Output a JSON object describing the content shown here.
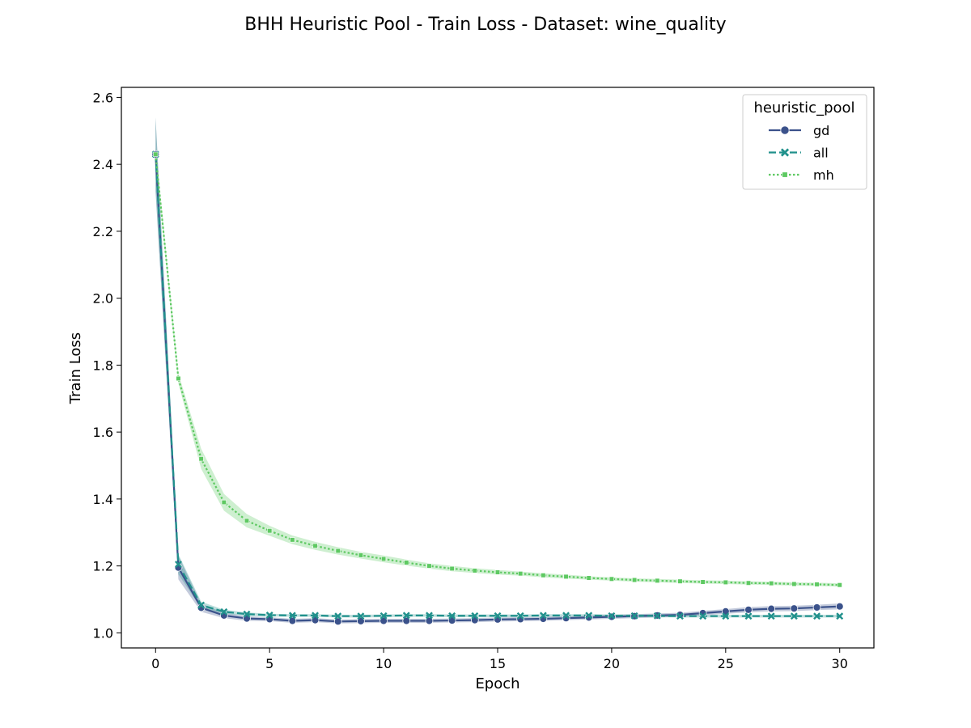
{
  "chart_data": {
    "type": "line",
    "title": "BHH Heuristic Pool - Train Loss - Dataset: wine_quality",
    "xlabel": "Epoch",
    "ylabel": "Train Loss",
    "xlim": [
      -1.5,
      31.5
    ],
    "ylim": [
      0.955,
      2.63
    ],
    "xticks": [
      0,
      5,
      10,
      15,
      20,
      25,
      30
    ],
    "yticks": [
      1.0,
      1.2,
      1.4,
      1.6,
      1.8,
      2.0,
      2.2,
      2.4,
      2.6
    ],
    "xtick_labels": [
      "0",
      "5",
      "10",
      "15",
      "20",
      "25",
      "30"
    ],
    "ytick_labels": [
      "1.0",
      "1.2",
      "1.4",
      "1.6",
      "1.8",
      "2.0",
      "2.2",
      "2.4",
      "2.6"
    ],
    "grid": false,
    "legend": {
      "title": "heuristic_pool",
      "position": "top-right"
    },
    "x": [
      0,
      1,
      2,
      3,
      4,
      5,
      6,
      7,
      8,
      9,
      10,
      11,
      12,
      13,
      14,
      15,
      16,
      17,
      18,
      19,
      20,
      21,
      22,
      23,
      24,
      25,
      26,
      27,
      28,
      29,
      30
    ],
    "series": [
      {
        "name": "gd",
        "color": "#3b528b",
        "dash": "solid",
        "marker": "circle",
        "values": [
          2.43,
          1.195,
          1.075,
          1.052,
          1.043,
          1.041,
          1.036,
          1.038,
          1.034,
          1.035,
          1.036,
          1.036,
          1.036,
          1.037,
          1.038,
          1.04,
          1.041,
          1.042,
          1.044,
          1.046,
          1.048,
          1.05,
          1.052,
          1.054,
          1.059,
          1.064,
          1.069,
          1.072,
          1.073,
          1.076,
          1.079
        ],
        "band": [
          0.11,
          0.035,
          0.012,
          0.008,
          0.007,
          0.006,
          0.006,
          0.006,
          0.006,
          0.006,
          0.006,
          0.006,
          0.006,
          0.006,
          0.006,
          0.006,
          0.006,
          0.006,
          0.006,
          0.006,
          0.006,
          0.006,
          0.006,
          0.006,
          0.007,
          0.007,
          0.008,
          0.008,
          0.008,
          0.008,
          0.009
        ]
      },
      {
        "name": "all",
        "color": "#21918c",
        "dash": "dashed",
        "marker": "x",
        "values": [
          2.43,
          1.205,
          1.083,
          1.063,
          1.056,
          1.053,
          1.052,
          1.052,
          1.05,
          1.05,
          1.051,
          1.052,
          1.052,
          1.051,
          1.051,
          1.051,
          1.051,
          1.052,
          1.052,
          1.052,
          1.051,
          1.051,
          1.051,
          1.05,
          1.05,
          1.05,
          1.05,
          1.05,
          1.05,
          1.05,
          1.05
        ],
        "band": [
          0.11,
          0.03,
          0.01,
          0.006,
          0.005,
          0.004,
          0.004,
          0.004,
          0.004,
          0.004,
          0.004,
          0.004,
          0.004,
          0.004,
          0.004,
          0.004,
          0.004,
          0.004,
          0.004,
          0.004,
          0.004,
          0.004,
          0.004,
          0.004,
          0.004,
          0.004,
          0.004,
          0.004,
          0.004,
          0.004,
          0.004
        ]
      },
      {
        "name": "mh",
        "color": "#5ec962",
        "dash": "dotted",
        "marker": "square",
        "values": [
          2.43,
          1.76,
          1.52,
          1.39,
          1.335,
          1.305,
          1.278,
          1.26,
          1.245,
          1.232,
          1.221,
          1.21,
          1.2,
          1.192,
          1.186,
          1.181,
          1.177,
          1.172,
          1.168,
          1.164,
          1.161,
          1.158,
          1.156,
          1.154,
          1.152,
          1.151,
          1.149,
          1.148,
          1.146,
          1.145,
          1.143
        ],
        "band": [
          0.02,
          0.015,
          0.03,
          0.025,
          0.02,
          0.015,
          0.013,
          0.012,
          0.011,
          0.01,
          0.01,
          0.009,
          0.008,
          0.008,
          0.007,
          0.007,
          0.006,
          0.006,
          0.006,
          0.005,
          0.005,
          0.005,
          0.005,
          0.005,
          0.005,
          0.005,
          0.005,
          0.005,
          0.005,
          0.005,
          0.005
        ]
      }
    ]
  }
}
